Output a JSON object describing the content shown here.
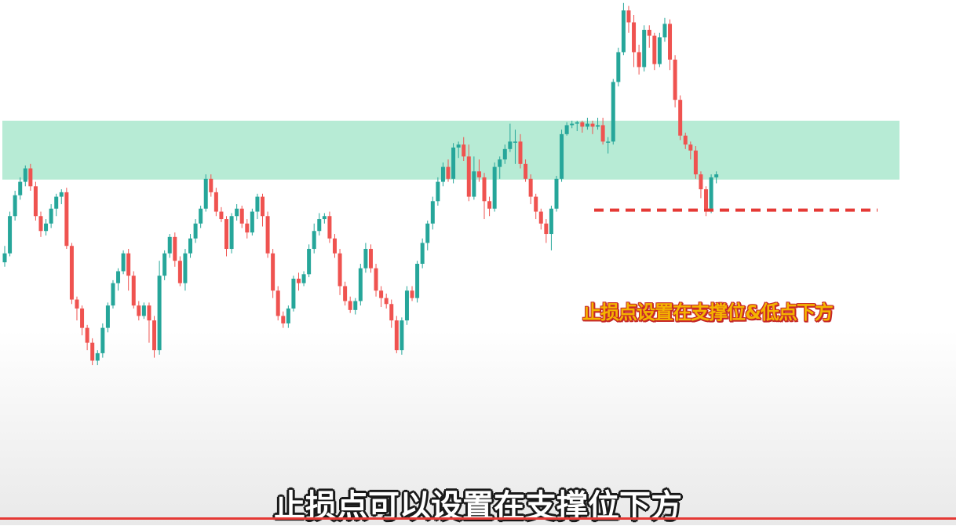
{
  "colors": {
    "up": "#26a69a",
    "down": "#ef5350",
    "support_zone": "#b7ebd5",
    "stop_line": "#e53935"
  },
  "annotation": "止损点设置在支撑位&低点下方",
  "subtitle": "止损点可以设置在支撑位下方",
  "video_progress": 1.0,
  "chart_data": {
    "type": "candlestick",
    "title": "",
    "xlabel": "",
    "ylabel": "",
    "ylim": [
      0,
      590
    ],
    "grid": false,
    "support_zone": [
      349,
      428
    ],
    "stop_loss_level": 308,
    "candles": [
      [
        238,
        250,
        260,
        232
      ],
      [
        250,
        300,
        306,
        246
      ],
      [
        300,
        328,
        334,
        294
      ],
      [
        328,
        346,
        352,
        322
      ],
      [
        346,
        364,
        368,
        340
      ],
      [
        364,
        340,
        370,
        334
      ],
      [
        340,
        300,
        346,
        294
      ],
      [
        300,
        280,
        306,
        272
      ],
      [
        280,
        290,
        296,
        274
      ],
      [
        290,
        310,
        316,
        284
      ],
      [
        310,
        326,
        330,
        300
      ],
      [
        326,
        332,
        336,
        316
      ],
      [
        332,
        260,
        338,
        256
      ],
      [
        260,
        188,
        264,
        182
      ],
      [
        188,
        176,
        192,
        160
      ],
      [
        176,
        150,
        180,
        140
      ],
      [
        150,
        130,
        154,
        120
      ],
      [
        130,
        106,
        136,
        100
      ],
      [
        106,
        116,
        120,
        100
      ],
      [
        116,
        150,
        156,
        110
      ],
      [
        150,
        180,
        184,
        144
      ],
      [
        180,
        210,
        214,
        176
      ],
      [
        210,
        226,
        230,
        200
      ],
      [
        226,
        250,
        254,
        222
      ],
      [
        250,
        220,
        256,
        200
      ],
      [
        220,
        180,
        226,
        176
      ],
      [
        180,
        166,
        186,
        160
      ],
      [
        166,
        180,
        184,
        162
      ],
      [
        180,
        160,
        184,
        130
      ],
      [
        160,
        120,
        166,
        110
      ],
      [
        120,
        220,
        240,
        114
      ],
      [
        220,
        250,
        254,
        214
      ],
      [
        250,
        272,
        276,
        244
      ],
      [
        272,
        240,
        278,
        232
      ],
      [
        240,
        210,
        246,
        206
      ],
      [
        210,
        250,
        256,
        200
      ],
      [
        250,
        270,
        276,
        244
      ],
      [
        270,
        290,
        296,
        264
      ],
      [
        290,
        310,
        314,
        284
      ],
      [
        310,
        350,
        356,
        306
      ],
      [
        350,
        332,
        356,
        326
      ],
      [
        332,
        306,
        338,
        300
      ],
      [
        306,
        296,
        312,
        292
      ],
      [
        296,
        256,
        300,
        246
      ],
      [
        256,
        300,
        304,
        250
      ],
      [
        300,
        310,
        316,
        294
      ],
      [
        310,
        290,
        314,
        284
      ],
      [
        290,
        278,
        296,
        270
      ],
      [
        278,
        306,
        310,
        274
      ],
      [
        306,
        326,
        330,
        296
      ],
      [
        326,
        300,
        330,
        286
      ],
      [
        300,
        250,
        306,
        244
      ],
      [
        250,
        200,
        256,
        190
      ],
      [
        200,
        166,
        206,
        160
      ],
      [
        166,
        156,
        172,
        150
      ],
      [
        156,
        176,
        180,
        150
      ],
      [
        176,
        216,
        220,
        172
      ],
      [
        216,
        210,
        224,
        200
      ],
      [
        210,
        222,
        226,
        206
      ],
      [
        222,
        256,
        262,
        218
      ],
      [
        256,
        280,
        290,
        250
      ],
      [
        280,
        296,
        304,
        274
      ],
      [
        296,
        300,
        304,
        290
      ],
      [
        300,
        270,
        306,
        264
      ],
      [
        270,
        250,
        276,
        244
      ],
      [
        250,
        206,
        256,
        194
      ],
      [
        206,
        186,
        212,
        180
      ],
      [
        186,
        174,
        192,
        170
      ],
      [
        174,
        186,
        190,
        168
      ],
      [
        186,
        230,
        236,
        180
      ],
      [
        230,
        256,
        264,
        224
      ],
      [
        256,
        230,
        262,
        224
      ],
      [
        230,
        200,
        236,
        192
      ],
      [
        200,
        190,
        206,
        178
      ],
      [
        190,
        182,
        196,
        176
      ],
      [
        182,
        160,
        188,
        150
      ],
      [
        160,
        120,
        166,
        116
      ],
      [
        120,
        160,
        164,
        114
      ],
      [
        160,
        200,
        206,
        154
      ],
      [
        200,
        190,
        206,
        186
      ],
      [
        190,
        236,
        240,
        184
      ],
      [
        236,
        264,
        270,
        230
      ],
      [
        264,
        290,
        294,
        254
      ],
      [
        290,
        320,
        326,
        282
      ],
      [
        320,
        346,
        352,
        314
      ],
      [
        346,
        366,
        372,
        340
      ],
      [
        366,
        350,
        376,
        346
      ],
      [
        350,
        392,
        398,
        344
      ],
      [
        392,
        396,
        400,
        378
      ],
      [
        396,
        380,
        406,
        374
      ],
      [
        380,
        326,
        396,
        320
      ],
      [
        326,
        360,
        380,
        322
      ],
      [
        360,
        352,
        376,
        346
      ],
      [
        352,
        320,
        358,
        296
      ],
      [
        320,
        310,
        326,
        300
      ],
      [
        310,
        366,
        372,
        306
      ],
      [
        366,
        376,
        380,
        350
      ],
      [
        376,
        390,
        396,
        370
      ],
      [
        390,
        400,
        424,
        386
      ],
      [
        400,
        400,
        416,
        370
      ],
      [
        400,
        370,
        410,
        364
      ],
      [
        370,
        350,
        376,
        346
      ],
      [
        350,
        326,
        356,
        316
      ],
      [
        326,
        306,
        330,
        296
      ],
      [
        306,
        290,
        310,
        282
      ],
      [
        290,
        276,
        296,
        264
      ],
      [
        276,
        310,
        314,
        254
      ],
      [
        310,
        350,
        354,
        306
      ],
      [
        350,
        410,
        416,
        346
      ],
      [
        410,
        422,
        426,
        408
      ],
      [
        422,
        424,
        428,
        418
      ],
      [
        424,
        426,
        428,
        414
      ],
      [
        426,
        420,
        428,
        412
      ],
      [
        420,
        424,
        432,
        416
      ],
      [
        424,
        420,
        428,
        410
      ],
      [
        420,
        422,
        432,
        416
      ],
      [
        422,
        400,
        432,
        396
      ],
      [
        400,
        400,
        406,
        384
      ],
      [
        400,
        480,
        484,
        396
      ],
      [
        480,
        520,
        526,
        474
      ],
      [
        520,
        576,
        586,
        516
      ],
      [
        576,
        560,
        582,
        546
      ],
      [
        560,
        520,
        570,
        500
      ],
      [
        520,
        500,
        530,
        490
      ],
      [
        500,
        550,
        556,
        494
      ],
      [
        550,
        542,
        556,
        526
      ],
      [
        542,
        504,
        546,
        496
      ],
      [
        504,
        540,
        546,
        500
      ],
      [
        540,
        558,
        566,
        534
      ],
      [
        558,
        510,
        564,
        496
      ],
      [
        510,
        456,
        516,
        446
      ],
      [
        456,
        408,
        462,
        402
      ],
      [
        408,
        396,
        412,
        390
      ],
      [
        396,
        388,
        400,
        376
      ],
      [
        388,
        356,
        394,
        350
      ],
      [
        356,
        336,
        360,
        324
      ],
      [
        336,
        310,
        340,
        300
      ],
      [
        310,
        352,
        356,
        304
      ],
      [
        352,
        356,
        360,
        344
      ]
    ]
  }
}
